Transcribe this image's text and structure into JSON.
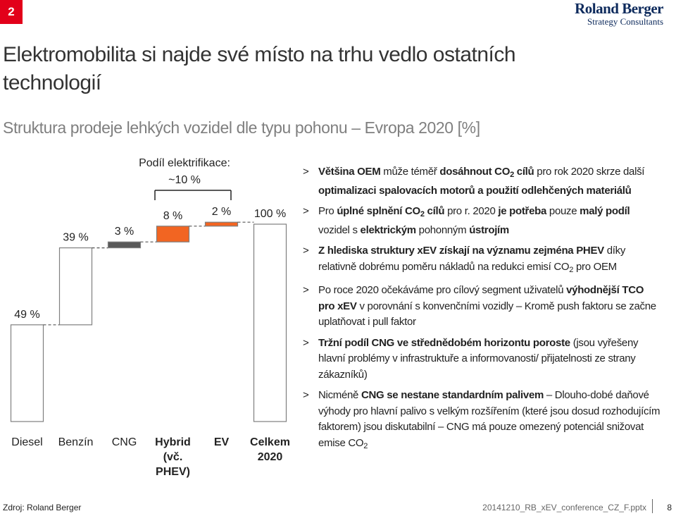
{
  "page_number": "2",
  "logo": {
    "name": "Roland Berger",
    "tagline": "Strategy Consultants"
  },
  "title": "Elektromobilita si najde své místo na trhu vedlo ostatních technologií",
  "subtitle": "Struktura prodeje lehkých vozidel dle typu pohonu – Evropa 2020 [%]",
  "chart_data": {
    "type": "waterfall",
    "categories": [
      "Diesel",
      "Benzín",
      "CNG",
      "Hybrid (vč. PHEV)",
      "EV",
      "Celkem 2020"
    ],
    "category_bold": [
      false,
      false,
      false,
      true,
      true,
      true
    ],
    "values": [
      49,
      39,
      3,
      8,
      2,
      100
    ],
    "value_labels": [
      "49 %",
      "39 %",
      "3 %",
      "8 %",
      "2 %",
      "100 %"
    ],
    "measure": [
      "relative",
      "relative",
      "relative",
      "relative",
      "relative",
      "total"
    ],
    "colors": [
      "#ffffff",
      "#ffffff",
      "#595959",
      "#f26522",
      "#f26522",
      "#ffffff"
    ],
    "annotation": [
      "Podíl elektrifikace:",
      "~10 %"
    ]
  },
  "bullets": [
    [
      {
        "text": "Většina OEM",
        "style": "bold"
      },
      {
        "text": " může téměř ",
        "style": "normal"
      },
      {
        "text": "dosáhnout CO",
        "style": "bold"
      },
      {
        "text": "2",
        "style": "bold-sub"
      },
      {
        "text": " cílů",
        "style": "bold"
      },
      {
        "text": " pro rok 2020 skrze další ",
        "style": "normal"
      },
      {
        "text": "optimalizaci spalovacích motorů a použití odlehčených materiálů",
        "style": "bold"
      }
    ],
    [
      {
        "text": "Pro ",
        "style": "normal"
      },
      {
        "text": "úplné splnění CO",
        "style": "bold"
      },
      {
        "text": "2",
        "style": "bold-sub"
      },
      {
        "text": " cílů",
        "style": "bold"
      },
      {
        "text": " pro r. 2020 ",
        "style": "normal"
      },
      {
        "text": "je potřeba",
        "style": "bold"
      },
      {
        "text": " pouze ",
        "style": "normal"
      },
      {
        "text": "malý podíl",
        "style": "bold"
      },
      {
        "text": " vozidel s ",
        "style": "normal"
      },
      {
        "text": "elektrickým",
        "style": "bold"
      },
      {
        "text": " pohonným ",
        "style": "normal"
      },
      {
        "text": "ústrojím",
        "style": "bold"
      }
    ],
    [
      {
        "text": "Z hlediska struktury xEV získají na významu zejména PHEV",
        "style": "bold"
      },
      {
        "text": " díky relativně dobrému poměru nákladů na redukci emisí CO",
        "style": "normal"
      },
      {
        "text": "2",
        "style": "sub"
      },
      {
        "text": " pro OEM",
        "style": "normal"
      }
    ],
    [
      {
        "text": "Po roce 2020 očekáváme pro cílový segment uživatelů ",
        "style": "normal"
      },
      {
        "text": "výhodnější TCO pro xEV",
        "style": "bold"
      },
      {
        "text": " v porovnání s konvenčními vozidly – Kromě push faktoru se začne uplatňovat i pull faktor",
        "style": "normal"
      }
    ],
    [
      {
        "text": "Tržní podíl CNG ve střednědobém horizontu poroste",
        "style": "bold"
      },
      {
        "text": " (jsou vyřešeny hlavní problémy v infrastruktuře a informovanosti/ přijatelnosti ze strany zákazníků)",
        "style": "normal"
      }
    ],
    [
      {
        "text": "Nicméně ",
        "style": "normal"
      },
      {
        "text": "CNG se nestane standardním palivem",
        "style": "bold"
      },
      {
        "text": " – Dlouho-dobé daňové výhody pro hlavní palivo s velkým rozšířením (které jsou dosud rozhodujícím faktorem) jsou diskutabilní – CNG má pouze omezený potenciál snižovat emise CO",
        "style": "normal"
      },
      {
        "text": "2",
        "style": "sub"
      }
    ]
  ],
  "bullet_marker": ">",
  "footer": {
    "source": "Zdroj: Roland Berger",
    "file": "20141210_RB_xEV_conference_CZ_F.pptx",
    "page": "8"
  }
}
